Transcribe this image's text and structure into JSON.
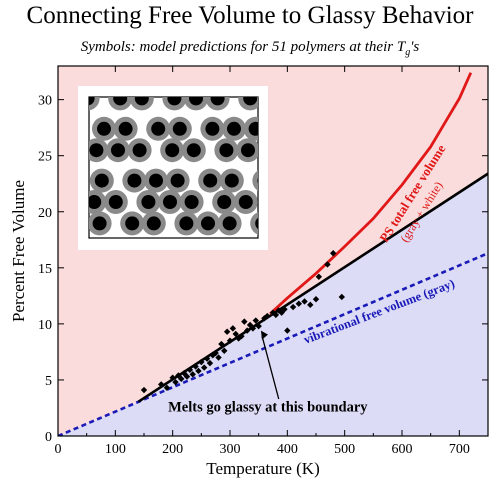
{
  "page": {
    "title": "Connecting Free Volume to Glassy Behavior",
    "subtitle_prefix": "Symbols: model predictions for 51 polymers at their T",
    "subtitle_sub": "g",
    "subtitle_suffix": "'s"
  },
  "chart_data": {
    "type": "scatter",
    "xlabel": "Temperature  (K)",
    "ylabel": "Percent Free Volume",
    "xlim": [
      0,
      750
    ],
    "ylim": [
      0,
      33
    ],
    "xticks": [
      0,
      100,
      200,
      300,
      400,
      500,
      600,
      700
    ],
    "yticks": [
      0,
      5,
      10,
      15,
      20,
      25,
      30
    ],
    "grid": false,
    "colors": {
      "glassy_region": "#fbdcdc",
      "melt_region": "#dcdcf7",
      "total_curve": "#e01818",
      "vibrational_line": "#1a1ab8",
      "boundary_line": "#000000",
      "points": "#000000"
    },
    "series": [
      {
        "name": "PS total free volume",
        "name_sub": "(gray + white)",
        "kind": "curve",
        "x": [
          370,
          400,
          450,
          500,
          550,
          600,
          650,
          700,
          720
        ],
        "y": [
          10.9,
          12.3,
          14.5,
          16.9,
          19.4,
          22.4,
          25.8,
          30.1,
          32.4
        ]
      },
      {
        "name": "vibrational free volume (gray)",
        "kind": "dashed-line",
        "x": [
          0,
          750
        ],
        "y": [
          0,
          16.3
        ]
      },
      {
        "name": "boundary",
        "kind": "line",
        "x": [
          140,
          750
        ],
        "y": [
          3.05,
          23.4
        ]
      },
      {
        "name": "polymers at Tg",
        "kind": "points",
        "x": [
          150,
          180,
          190,
          200,
          205,
          210,
          215,
          220,
          225,
          230,
          235,
          240,
          245,
          250,
          255,
          260,
          265,
          270,
          275,
          280,
          285,
          290,
          295,
          300,
          305,
          310,
          315,
          320,
          325,
          330,
          335,
          340,
          345,
          350,
          360,
          365,
          375,
          380,
          385,
          390,
          395,
          400,
          410,
          420,
          430,
          440,
          450,
          455,
          470,
          480,
          495
        ],
        "y": [
          4.1,
          4.6,
          4.3,
          5.2,
          4.8,
          5.4,
          5.1,
          5.6,
          5.3,
          5.9,
          5.5,
          6.2,
          5.8,
          6.6,
          6.1,
          6.9,
          6.5,
          7.2,
          7.4,
          7.0,
          8.2,
          7.6,
          9.3,
          8.5,
          9.6,
          9.1,
          8.7,
          8.9,
          10.2,
          9.4,
          9.9,
          9.6,
          10.3,
          9.8,
          10.5,
          10.7,
          11.0,
          10.8,
          11.2,
          11.0,
          11.3,
          9.4,
          11.5,
          11.8,
          12.0,
          11.7,
          12.2,
          14.2,
          15.3,
          16.3,
          12.4
        ]
      }
    ],
    "annotations": {
      "boundary_label": "Melts go glassy at this boundary",
      "total_label": "PS total free volume",
      "total_sublabel": "(gray + white)",
      "vibrational_label": "vibrational free volume (gray)"
    }
  }
}
